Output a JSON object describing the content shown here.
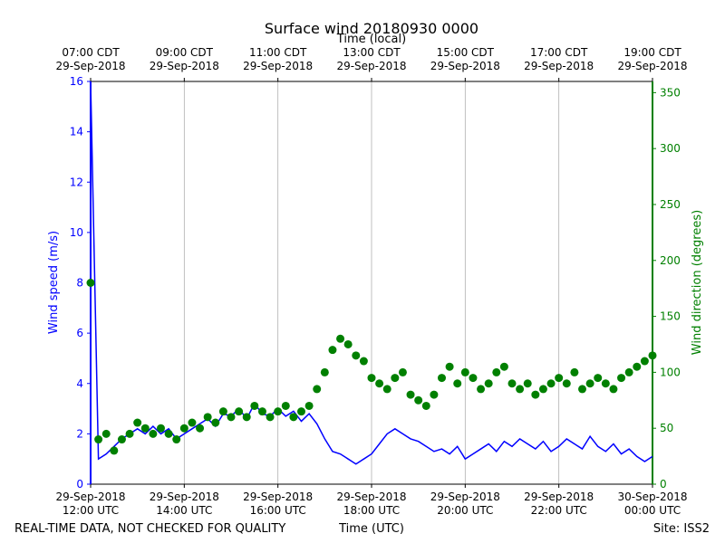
{
  "chart_data": {
    "type": "line",
    "title": "Surface wind 20180930 0000",
    "xlabel": "Time (UTC)",
    "x2label": "Time (local)",
    "ylabel": "Wind speed (m/s)",
    "y2label": "Wind direction (degrees)",
    "footer_left": "REAL-TIME DATA, NOT CHECKED FOR QUALITY",
    "footer_right": "Site: ISS2",
    "xlim": [
      "2018-09-29T12:00Z",
      "2018-09-30T00:00Z"
    ],
    "xticks": [
      {
        "value": "2018-09-29T12:00Z",
        "label": "29-Sep-2018\n12:00 UTC"
      },
      {
        "value": "2018-09-29T14:00Z",
        "label": "29-Sep-2018\n14:00 UTC"
      },
      {
        "value": "2018-09-29T16:00Z",
        "label": "29-Sep-2018\n16:00 UTC"
      },
      {
        "value": "2018-09-29T18:00Z",
        "label": "29-Sep-2018\n18:00 UTC"
      },
      {
        "value": "2018-09-29T20:00Z",
        "label": "29-Sep-2018\n20:00 UTC"
      },
      {
        "value": "2018-09-29T22:00Z",
        "label": "29-Sep-2018\n22:00 UTC"
      },
      {
        "value": "2018-09-30T00:00Z",
        "label": "30-Sep-2018\n00:00 UTC"
      }
    ],
    "x2ticks": [
      {
        "value": "2018-09-29T12:00Z",
        "label": "07:00 CDT\n29-Sep-2018"
      },
      {
        "value": "2018-09-29T14:00Z",
        "label": "09:00 CDT\n29-Sep-2018"
      },
      {
        "value": "2018-09-29T16:00Z",
        "label": "11:00 CDT\n29-Sep-2018"
      },
      {
        "value": "2018-09-29T18:00Z",
        "label": "13:00 CDT\n29-Sep-2018"
      },
      {
        "value": "2018-09-29T20:00Z",
        "label": "15:00 CDT\n29-Sep-2018"
      },
      {
        "value": "2018-09-29T22:00Z",
        "label": "17:00 CDT\n29-Sep-2018"
      },
      {
        "value": "2018-09-30T00:00Z",
        "label": "19:00 CDT\n29-Sep-2018"
      }
    ],
    "ylim": [
      0,
      16
    ],
    "yticks": [
      0,
      2,
      4,
      6,
      8,
      10,
      12,
      14,
      16
    ],
    "y2lim": [
      0,
      360
    ],
    "y2ticks": [
      0,
      50,
      100,
      150,
      200,
      250,
      300,
      350
    ],
    "grid": true,
    "x": [
      "2018-09-29T12:00Z",
      "2018-09-29T12:10Z",
      "2018-09-29T12:20Z",
      "2018-09-29T12:30Z",
      "2018-09-29T12:40Z",
      "2018-09-29T12:50Z",
      "2018-09-29T13:00Z",
      "2018-09-29T13:10Z",
      "2018-09-29T13:20Z",
      "2018-09-29T13:30Z",
      "2018-09-29T13:40Z",
      "2018-09-29T13:50Z",
      "2018-09-29T14:00Z",
      "2018-09-29T14:10Z",
      "2018-09-29T14:20Z",
      "2018-09-29T14:30Z",
      "2018-09-29T14:40Z",
      "2018-09-29T14:50Z",
      "2018-09-29T15:00Z",
      "2018-09-29T15:10Z",
      "2018-09-29T15:20Z",
      "2018-09-29T15:30Z",
      "2018-09-29T15:40Z",
      "2018-09-29T15:50Z",
      "2018-09-29T16:00Z",
      "2018-09-29T16:10Z",
      "2018-09-29T16:20Z",
      "2018-09-29T16:30Z",
      "2018-09-29T16:40Z",
      "2018-09-29T16:50Z",
      "2018-09-29T17:00Z",
      "2018-09-29T17:10Z",
      "2018-09-29T17:20Z",
      "2018-09-29T17:30Z",
      "2018-09-29T17:40Z",
      "2018-09-29T17:50Z",
      "2018-09-29T18:00Z",
      "2018-09-29T18:10Z",
      "2018-09-29T18:20Z",
      "2018-09-29T18:30Z",
      "2018-09-29T18:40Z",
      "2018-09-29T18:50Z",
      "2018-09-29T19:00Z",
      "2018-09-29T19:10Z",
      "2018-09-29T19:20Z",
      "2018-09-29T19:30Z",
      "2018-09-29T19:40Z",
      "2018-09-29T19:50Z",
      "2018-09-29T20:00Z",
      "2018-09-29T20:10Z",
      "2018-09-29T20:20Z",
      "2018-09-29T20:30Z",
      "2018-09-29T20:40Z",
      "2018-09-29T20:50Z",
      "2018-09-29T21:00Z",
      "2018-09-29T21:10Z",
      "2018-09-29T21:20Z",
      "2018-09-29T21:30Z",
      "2018-09-29T21:40Z",
      "2018-09-29T21:50Z",
      "2018-09-29T22:00Z",
      "2018-09-29T22:10Z",
      "2018-09-29T22:20Z",
      "2018-09-29T22:30Z",
      "2018-09-29T22:40Z",
      "2018-09-29T22:50Z",
      "2018-09-29T23:00Z",
      "2018-09-29T23:10Z",
      "2018-09-29T23:20Z",
      "2018-09-29T23:30Z",
      "2018-09-29T23:40Z",
      "2018-09-29T23:50Z",
      "2018-09-30T00:00Z"
    ],
    "series": [
      {
        "name": "Wind speed",
        "type": "line",
        "color": "#0000ff",
        "axis": "y",
        "values": [
          16,
          1.0,
          1.2,
          1.5,
          1.8,
          2.0,
          2.2,
          2.0,
          2.3,
          2.0,
          2.2,
          1.8,
          2.0,
          2.2,
          2.4,
          2.6,
          2.3,
          2.8,
          2.7,
          3.0,
          2.6,
          3.2,
          2.8,
          2.7,
          3.0,
          2.7,
          2.9,
          2.5,
          2.8,
          2.4,
          1.8,
          1.3,
          1.2,
          1.0,
          0.8,
          1.0,
          1.2,
          1.6,
          2.0,
          2.2,
          2.0,
          1.8,
          1.7,
          1.5,
          1.3,
          1.4,
          1.2,
          1.5,
          1.0,
          1.2,
          1.4,
          1.6,
          1.3,
          1.7,
          1.5,
          1.8,
          1.6,
          1.4,
          1.7,
          1.3,
          1.5,
          1.8,
          1.6,
          1.4,
          1.9,
          1.5,
          1.3,
          1.6,
          1.2,
          1.4,
          1.1,
          0.9,
          1.1
        ]
      },
      {
        "name": "Wind direction",
        "type": "scatter",
        "color": "#008000",
        "axis": "y2",
        "values": [
          180,
          40,
          45,
          30,
          40,
          45,
          55,
          50,
          45,
          50,
          45,
          40,
          50,
          55,
          50,
          60,
          55,
          65,
          60,
          65,
          60,
          70,
          65,
          60,
          65,
          70,
          60,
          65,
          70,
          85,
          100,
          120,
          130,
          125,
          115,
          110,
          95,
          90,
          85,
          95,
          100,
          80,
          75,
          70,
          80,
          95,
          105,
          90,
          100,
          95,
          85,
          90,
          100,
          105,
          90,
          85,
          90,
          80,
          85,
          90,
          95,
          90,
          100,
          85,
          90,
          95,
          90,
          85,
          95,
          100,
          105,
          110,
          115
        ]
      }
    ]
  }
}
